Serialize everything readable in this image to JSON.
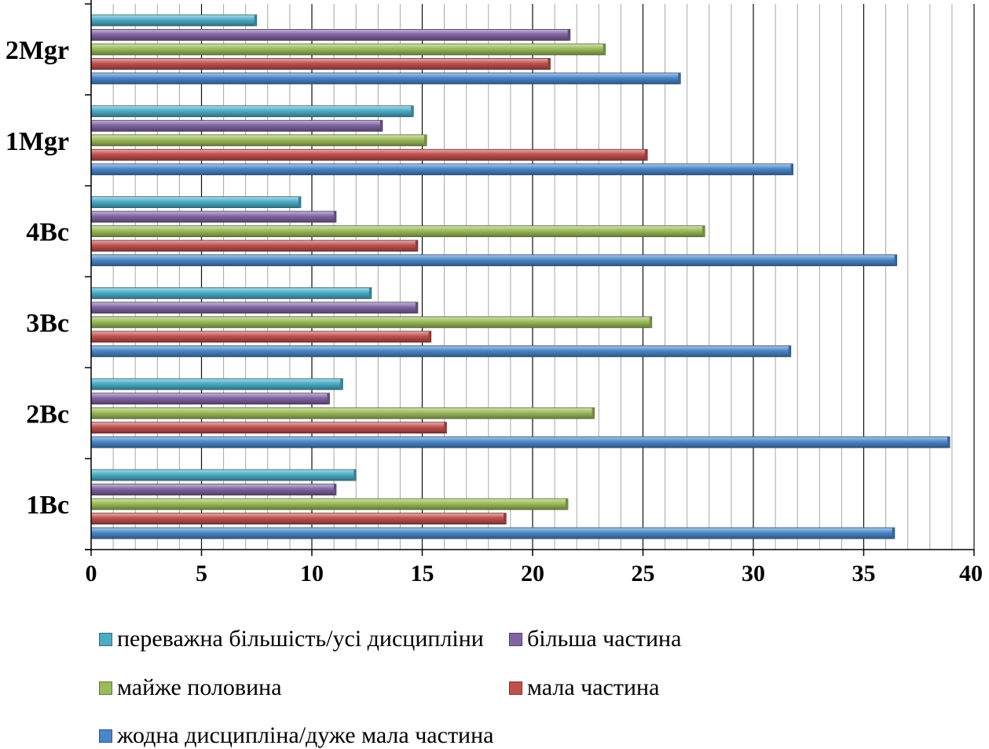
{
  "chart_data": {
    "type": "bar",
    "orientation": "horizontal",
    "categories": [
      "1Bc",
      "2Bc",
      "3Bc",
      "4Bc",
      "1Mgr",
      "2Mgr"
    ],
    "series": [
      {
        "name": "жодна дисципліна/дуже мала частина",
        "color": "#4a86c8",
        "values": [
          36.4,
          38.9,
          31.7,
          36.5,
          31.8,
          26.7
        ]
      },
      {
        "name": "мала частина",
        "color": "#c0504d",
        "values": [
          18.8,
          16.1,
          15.4,
          14.8,
          25.2,
          20.8
        ]
      },
      {
        "name": "майже половина",
        "color": "#9bbb59",
        "values": [
          21.6,
          22.8,
          25.4,
          27.8,
          15.2,
          23.3
        ]
      },
      {
        "name": "більша частина",
        "color": "#8064a2",
        "values": [
          11.1,
          10.8,
          14.8,
          11.1,
          13.2,
          21.7
        ]
      },
      {
        "name": "переважна більшість/усі дисципліни",
        "color": "#4bacc6",
        "values": [
          12.0,
          11.4,
          12.7,
          9.5,
          14.6,
          7.5
        ]
      }
    ],
    "xlim": [
      0,
      40
    ],
    "xticks": [
      0,
      5,
      10,
      15,
      20,
      25,
      30,
      35,
      40
    ],
    "grid": "vertical major and minor",
    "legend_position": "bottom",
    "title": "",
    "xlabel": "",
    "ylabel": ""
  },
  "legend": [
    {
      "label": "переважна більшість/усі дисципліни",
      "color": "#4bacc6"
    },
    {
      "label": "більша частина",
      "color": "#8064a2"
    },
    {
      "label": "майже половина",
      "color": "#9bbb59"
    },
    {
      "label": "мала частина",
      "color": "#c0504d"
    },
    {
      "label": "жодна дисципліна/дуже мала частина",
      "color": "#4a86c8"
    }
  ]
}
